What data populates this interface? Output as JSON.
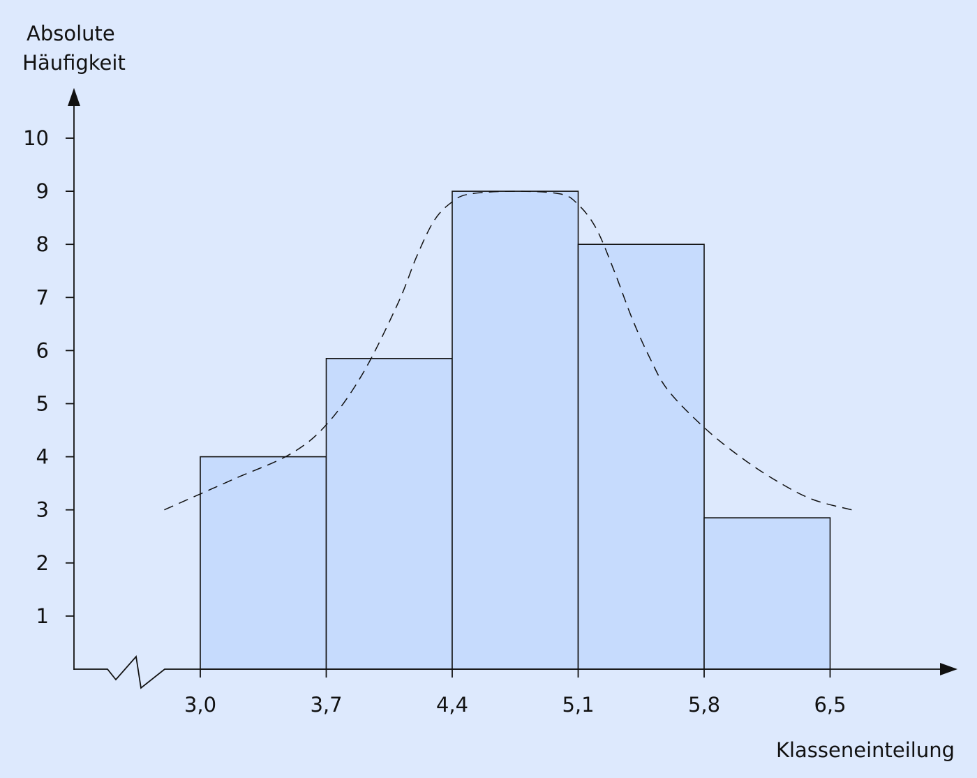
{
  "chart_data": {
    "type": "bar",
    "title": "",
    "ylabel_lines": [
      "Absolute",
      "Häufigkeit"
    ],
    "xlabel": "Klasseneinteilung",
    "x_ticks": [
      "3,0",
      "3,7",
      "4,4",
      "5,1",
      "5,8",
      "6,5"
    ],
    "x_tick_values": [
      3.0,
      3.7,
      4.4,
      5.1,
      5.8,
      6.5
    ],
    "y_ticks": [
      "1",
      "2",
      "3",
      "4",
      "5",
      "6",
      "7",
      "8",
      "9",
      "10"
    ],
    "y_tick_values": [
      1,
      2,
      3,
      4,
      5,
      6,
      7,
      8,
      9,
      10
    ],
    "ylim": [
      0,
      10
    ],
    "axis_break_on_x": true,
    "bars": [
      {
        "x0": 3.0,
        "x1": 3.7,
        "value": 4
      },
      {
        "x0": 3.7,
        "x1": 4.4,
        "value": 5.85
      },
      {
        "x0": 4.4,
        "x1": 5.1,
        "value": 9
      },
      {
        "x0": 5.1,
        "x1": 5.8,
        "value": 8
      },
      {
        "x0": 5.8,
        "x1": 6.5,
        "value": 2.85
      }
    ],
    "curve": {
      "style": "dashed",
      "points": [
        [
          2.8,
          3.0
        ],
        [
          3.0,
          3.3
        ],
        [
          3.2,
          3.6
        ],
        [
          3.5,
          4.05
        ],
        [
          3.7,
          4.6
        ],
        [
          3.9,
          5.55
        ],
        [
          4.1,
          6.9
        ],
        [
          4.2,
          7.75
        ],
        [
          4.3,
          8.45
        ],
        [
          4.4,
          8.8
        ],
        [
          4.5,
          8.95
        ],
        [
          4.75,
          9.0
        ],
        [
          5.0,
          8.95
        ],
        [
          5.1,
          8.75
        ],
        [
          5.2,
          8.3
        ],
        [
          5.3,
          7.5
        ],
        [
          5.4,
          6.6
        ],
        [
          5.5,
          5.85
        ],
        [
          5.6,
          5.25
        ],
        [
          5.8,
          4.55
        ],
        [
          6.0,
          4.0
        ],
        [
          6.2,
          3.55
        ],
        [
          6.4,
          3.2
        ],
        [
          6.62,
          3.0
        ]
      ]
    },
    "colors": {
      "bar_fill": "#c6dbfd",
      "background": "#dde9fd",
      "ink": "#111111"
    }
  }
}
